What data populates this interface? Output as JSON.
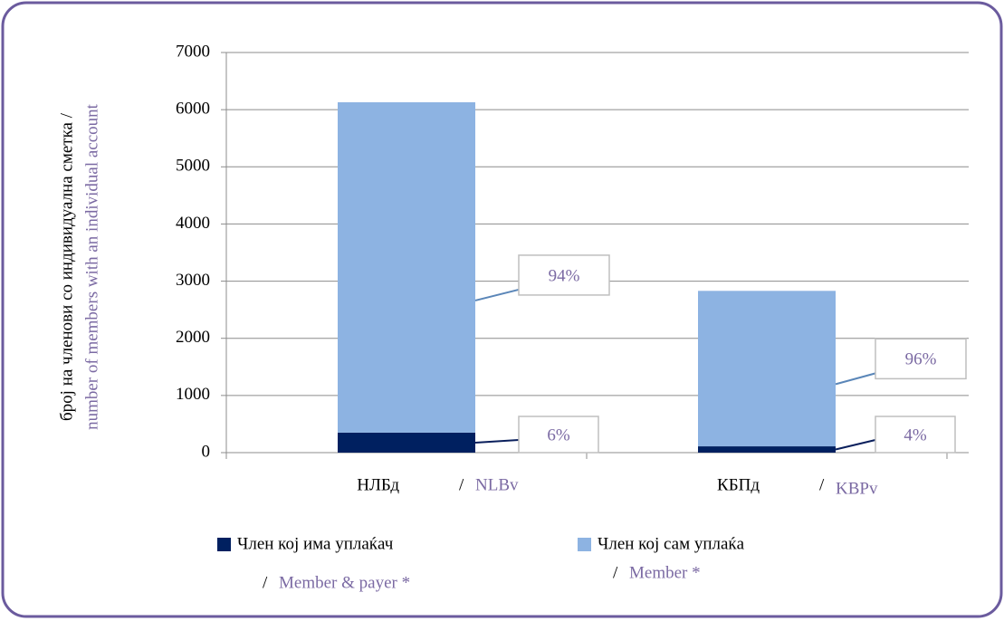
{
  "chart_data": {
    "type": "stacked_bar",
    "y_label": "број на членови со индивидуална сметка /",
    "y_label_en": "number of members with an individual account",
    "separator": "/",
    "categories": [
      "НЛБд",
      "КБПд"
    ],
    "categories_en": [
      "NLBv",
      "KBPv"
    ],
    "series": [
      {
        "name": "Член кој има уплаќач",
        "name_en": "Member & payer *",
        "color": "#002060",
        "values": [
          350,
          110
        ],
        "labels": [
          "6%",
          "4%"
        ]
      },
      {
        "name": "Член кој сам уплаќа",
        "name_en": "Member *",
        "color": "#8db3e2",
        "values": [
          5780,
          2720
        ],
        "labels": [
          "94%",
          "96%"
        ]
      }
    ],
    "ylim": [
      0,
      7000
    ],
    "yticks": [
      0,
      1000,
      2000,
      3000,
      4000,
      5000,
      6000,
      7000
    ],
    "grid": true,
    "legend": "bottom"
  }
}
